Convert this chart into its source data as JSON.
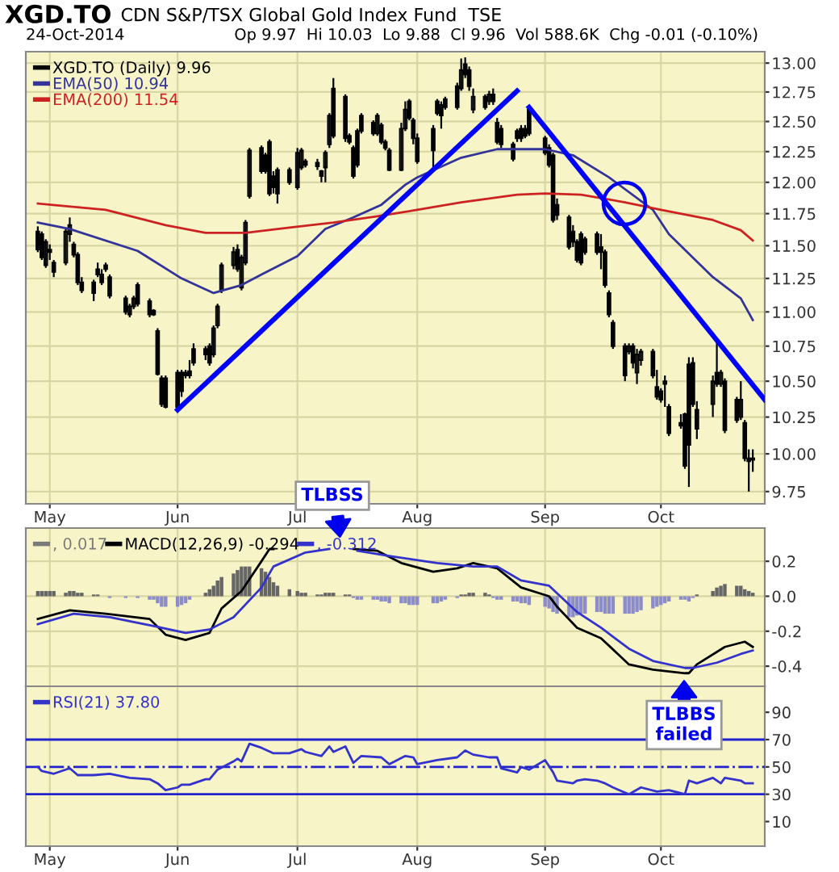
{
  "chart_data": [
    {
      "type": "candlestick",
      "title": "XGD.TO",
      "subtitle": "CDN S&P/TSX Global Gold Index Fund  TSE",
      "annotations": [
        "24-Oct-2014",
        "Op 9.97  Hi 10.03  Lo 9.88  Cl 9.96  Vol 588.6K  Chg -0.01 (-0.10%)"
      ],
      "x": [
        "2014-04-28",
        "2014-04-29",
        "2014-04-30",
        "2014-05-01",
        "2014-05-02",
        "2014-05-05",
        "2014-05-06",
        "2014-05-07",
        "2014-05-08",
        "2014-05-09",
        "2014-05-12",
        "2014-05-13",
        "2014-05-14",
        "2014-05-15",
        "2014-05-16",
        "2014-05-20",
        "2014-05-21",
        "2014-05-22",
        "2014-05-23",
        "2014-05-26",
        "2014-05-27",
        "2014-05-28",
        "2014-05-29",
        "2014-05-30",
        "2014-06-02",
        "2014-06-03",
        "2014-06-04",
        "2014-06-05",
        "2014-06-06",
        "2014-06-09",
        "2014-06-10",
        "2014-06-11",
        "2014-06-12",
        "2014-06-13",
        "2014-06-16",
        "2014-06-17",
        "2014-06-18",
        "2014-06-19",
        "2014-06-20",
        "2014-06-23",
        "2014-06-24",
        "2014-06-25",
        "2014-06-26",
        "2014-06-27",
        "2014-06-30",
        "2014-07-02",
        "2014-07-03",
        "2014-07-04",
        "2014-07-07",
        "2014-07-08",
        "2014-07-09",
        "2014-07-10",
        "2014-07-11",
        "2014-07-14",
        "2014-07-15",
        "2014-07-16",
        "2014-07-17",
        "2014-07-18",
        "2014-07-21",
        "2014-07-22",
        "2014-07-23",
        "2014-07-24",
        "2014-07-25",
        "2014-07-28",
        "2014-07-29",
        "2014-07-30",
        "2014-07-31",
        "2014-08-01",
        "2014-08-05",
        "2014-08-06",
        "2014-08-07",
        "2014-08-08",
        "2014-08-11",
        "2014-08-12",
        "2014-08-13",
        "2014-08-14",
        "2014-08-15",
        "2014-08-18",
        "2014-08-19",
        "2014-08-20",
        "2014-08-21",
        "2014-08-22",
        "2014-08-25",
        "2014-08-26",
        "2014-08-27",
        "2014-08-28",
        "2014-08-29",
        "2014-09-02",
        "2014-09-03",
        "2014-09-04",
        "2014-09-05",
        "2014-09-08",
        "2014-09-09",
        "2014-09-10",
        "2014-09-11",
        "2014-09-12",
        "2014-09-15",
        "2014-09-16",
        "2014-09-17",
        "2014-09-18",
        "2014-09-19",
        "2014-09-22",
        "2014-09-23",
        "2014-09-24",
        "2014-09-25",
        "2014-09-26",
        "2014-09-29",
        "2014-09-30",
        "2014-10-01",
        "2014-10-02",
        "2014-10-03",
        "2014-10-06",
        "2014-10-07",
        "2014-10-08",
        "2014-10-09",
        "2014-10-10",
        "2014-10-14",
        "2014-10-15",
        "2014-10-16",
        "2014-10-17",
        "2014-10-20",
        "2014-10-21",
        "2014-10-22",
        "2014-10-23",
        "2014-10-24"
      ],
      "series": [
        {
          "type": "candlestick",
          "name": "XGD.TO (Daily) 9.96",
          "color": "#000000",
          "ohlc": [
            [
              11.61,
              11.65,
              11.45,
              11.47
            ],
            [
              11.59,
              11.61,
              11.39,
              11.41
            ],
            [
              11.35,
              11.55,
              11.33,
              11.53
            ],
            [
              11.47,
              11.51,
              11.39,
              11.45
            ],
            [
              11.37,
              11.39,
              11.26,
              11.3
            ],
            [
              11.37,
              11.63,
              11.35,
              11.61
            ],
            [
              11.59,
              11.72,
              11.53,
              11.66
            ],
            [
              11.51,
              11.53,
              11.41,
              11.43
            ],
            [
              11.43,
              11.45,
              11.2,
              11.22
            ],
            [
              11.22,
              11.26,
              11.14,
              11.16
            ],
            [
              11.22,
              11.24,
              11.08,
              11.14
            ],
            [
              11.32,
              11.37,
              11.26,
              11.28
            ],
            [
              11.28,
              11.32,
              11.2,
              11.22
            ],
            [
              11.35,
              11.37,
              11.3,
              11.32
            ],
            [
              11.26,
              11.28,
              11.1,
              11.12
            ],
            [
              11.1,
              11.12,
              10.98,
              11.0
            ],
            [
              10.98,
              11.06,
              10.96,
              11.04
            ],
            [
              11.04,
              11.12,
              11.02,
              11.1
            ],
            [
              11.2,
              11.22,
              11.04,
              11.06
            ],
            [
              11.08,
              11.1,
              10.96,
              10.98
            ],
            [
              11.01,
              11.02,
              10.97,
              10.98
            ],
            [
              10.86,
              10.88,
              10.54,
              10.55
            ],
            [
              10.52,
              10.54,
              10.32,
              10.34
            ],
            [
              10.52,
              10.54,
              10.31,
              10.32
            ],
            [
              10.32,
              10.58,
              10.3,
              10.56
            ],
            [
              10.43,
              10.58,
              10.39,
              10.56
            ],
            [
              10.54,
              10.58,
              10.52,
              10.56
            ],
            [
              10.54,
              10.65,
              10.52,
              10.57
            ],
            [
              10.63,
              10.77,
              10.61,
              10.73
            ],
            [
              10.73,
              10.75,
              10.65,
              10.69
            ],
            [
              10.75,
              10.77,
              10.61,
              10.63
            ],
            [
              10.69,
              10.9,
              10.67,
              10.88
            ],
            [
              10.9,
              11.06,
              10.88,
              11.04
            ],
            [
              11.16,
              11.37,
              11.14,
              11.35
            ],
            [
              11.35,
              11.49,
              11.32,
              11.45
            ],
            [
              11.47,
              11.51,
              11.3,
              11.32
            ],
            [
              11.18,
              11.43,
              11.16,
              11.41
            ],
            [
              11.37,
              11.7,
              11.35,
              11.68
            ],
            [
              11.89,
              12.28,
              11.87,
              12.26
            ],
            [
              12.28,
              12.3,
              12.07,
              12.09
            ],
            [
              12.09,
              12.24,
              12.07,
              12.22
            ],
            [
              12.33,
              12.35,
              11.89,
              11.91
            ],
            [
              12.05,
              12.09,
              11.91,
              11.96
            ],
            [
              11.91,
              12.12,
              11.83,
              12.1
            ],
            [
              12.1,
              12.12,
              11.98,
              12.0
            ],
            [
              11.96,
              12.28,
              11.94,
              12.24
            ],
            [
              12.12,
              12.28,
              12.1,
              12.26
            ],
            [
              12.17,
              12.19,
              12.12,
              12.14
            ],
            [
              12.16,
              12.19,
              12.1,
              12.13
            ],
            [
              12.09,
              12.1,
              12.0,
              12.05
            ],
            [
              12.12,
              12.26,
              12.0,
              12.24
            ],
            [
              12.31,
              12.57,
              12.28,
              12.55
            ],
            [
              12.78,
              12.87,
              12.36,
              12.38
            ],
            [
              12.36,
              12.73,
              12.33,
              12.71
            ],
            [
              12.38,
              12.4,
              12.31,
              12.33
            ],
            [
              12.28,
              12.3,
              12.03,
              12.05
            ],
            [
              12.14,
              12.44,
              12.12,
              12.42
            ],
            [
              12.42,
              12.57,
              12.4,
              12.55
            ],
            [
              12.49,
              12.51,
              12.38,
              12.4
            ],
            [
              12.4,
              12.57,
              12.38,
              12.55
            ],
            [
              12.47,
              12.49,
              12.31,
              12.33
            ],
            [
              12.33,
              12.35,
              12.26,
              12.28
            ],
            [
              12.26,
              12.28,
              12.09,
              12.1
            ],
            [
              12.1,
              12.49,
              12.09,
              12.44
            ],
            [
              12.44,
              12.67,
              12.42,
              12.6
            ],
            [
              12.67,
              12.69,
              12.51,
              12.53
            ],
            [
              12.51,
              12.53,
              12.31,
              12.36
            ],
            [
              12.36,
              12.4,
              12.15,
              12.17
            ],
            [
              12.26,
              12.47,
              12.12,
              12.44
            ],
            [
              12.57,
              12.69,
              12.55,
              12.67
            ],
            [
              12.64,
              12.67,
              12.44,
              12.55
            ],
            [
              12.62,
              12.71,
              12.6,
              12.69
            ],
            [
              12.8,
              12.83,
              12.6,
              12.62
            ],
            [
              12.78,
              13.04,
              12.76,
              12.94
            ],
            [
              12.99,
              13.05,
              12.87,
              12.9
            ],
            [
              12.94,
              12.97,
              12.76,
              12.8
            ],
            [
              12.6,
              12.78,
              12.57,
              12.71
            ],
            [
              12.71,
              12.73,
              12.6,
              12.62
            ],
            [
              12.67,
              12.76,
              12.64,
              12.73
            ],
            [
              12.73,
              12.78,
              12.64,
              12.67
            ],
            [
              12.49,
              12.53,
              12.31,
              12.33
            ],
            [
              12.44,
              12.47,
              12.28,
              12.31
            ],
            [
              12.31,
              12.33,
              12.17,
              12.19
            ],
            [
              12.36,
              12.44,
              12.33,
              12.42
            ],
            [
              12.36,
              12.47,
              12.33,
              12.44
            ],
            [
              12.44,
              12.47,
              12.36,
              12.38
            ],
            [
              12.4,
              12.62,
              12.38,
              12.6
            ],
            [
              12.36,
              12.38,
              12.22,
              12.24
            ],
            [
              12.28,
              12.31,
              12.12,
              12.14
            ],
            [
              12.22,
              12.24,
              11.68,
              11.7
            ],
            [
              11.82,
              11.87,
              11.7,
              11.74
            ],
            [
              11.72,
              11.74,
              11.47,
              11.49
            ],
            [
              11.61,
              11.66,
              11.49,
              11.53
            ],
            [
              11.53,
              11.55,
              11.37,
              11.39
            ],
            [
              11.59,
              11.61,
              11.35,
              11.37
            ],
            [
              11.45,
              11.57,
              11.43,
              11.55
            ],
            [
              11.59,
              11.61,
              11.43,
              11.45
            ],
            [
              11.45,
              11.59,
              11.32,
              11.49
            ],
            [
              11.45,
              11.47,
              11.18,
              11.2
            ],
            [
              11.14,
              11.16,
              10.96,
              10.98
            ],
            [
              10.92,
              10.94,
              10.73,
              10.75
            ],
            [
              10.75,
              10.77,
              10.5,
              10.54
            ],
            [
              10.71,
              10.77,
              10.69,
              10.75
            ],
            [
              10.75,
              10.77,
              10.59,
              10.63
            ],
            [
              10.56,
              10.73,
              10.48,
              10.69
            ],
            [
              10.65,
              10.73,
              10.61,
              10.71
            ],
            [
              10.71,
              10.73,
              10.52,
              10.54
            ],
            [
              10.46,
              10.58,
              10.37,
              10.39
            ],
            [
              10.43,
              10.45,
              10.35,
              10.37
            ],
            [
              10.48,
              10.54,
              10.32,
              10.5
            ],
            [
              10.32,
              10.34,
              10.12,
              10.14
            ],
            [
              10.21,
              10.27,
              10.17,
              10.19
            ],
            [
              10.27,
              10.28,
              9.9,
              9.92
            ],
            [
              10.06,
              10.67,
              9.78,
              10.62
            ],
            [
              10.63,
              10.67,
              10.32,
              10.34
            ],
            [
              10.17,
              10.36,
              10.1,
              10.3
            ],
            [
              10.34,
              10.54,
              10.25,
              10.5
            ],
            [
              10.56,
              10.79,
              10.46,
              10.48
            ],
            [
              10.48,
              10.58,
              10.46,
              10.56
            ],
            [
              10.5,
              10.52,
              10.14,
              10.16
            ],
            [
              10.37,
              10.39,
              10.21,
              10.23
            ],
            [
              10.25,
              10.5,
              10.23,
              10.37
            ],
            [
              10.21,
              10.23,
              9.95,
              9.97
            ],
            [
              9.95,
              10.03,
              9.75,
              9.97
            ],
            [
              9.97,
              10.03,
              9.88,
              9.96
            ]
          ]
        },
        {
          "type": "line",
          "name": "EMA(50) 10.94",
          "color": "#333399",
          "x": [
            "2014-04-28",
            "2014-05-06",
            "2014-05-23",
            "2014-06-03",
            "2014-06-11",
            "2014-06-18",
            "2014-06-23",
            "2014-07-02",
            "2014-07-09",
            "2014-07-16",
            "2014-07-23",
            "2014-07-29",
            "2014-08-01",
            "2014-08-12",
            "2014-08-21",
            "2014-09-02",
            "2014-09-09",
            "2014-09-18",
            "2014-09-29",
            "2014-10-03",
            "2014-10-14",
            "2014-10-21",
            "2014-10-24"
          ],
          "values": [
            11.68,
            11.63,
            11.46,
            11.25,
            11.14,
            11.2,
            11.28,
            11.42,
            11.63,
            11.72,
            11.82,
            11.98,
            12.04,
            12.2,
            12.27,
            12.27,
            12.22,
            12.04,
            11.78,
            11.59,
            11.26,
            11.1,
            10.94
          ]
        },
        {
          "type": "line",
          "name": "EMA(200) 11.54",
          "color": "#cc2222",
          "x": [
            "2014-04-28",
            "2014-05-15",
            "2014-05-30",
            "2014-06-09",
            "2014-06-19",
            "2014-06-30",
            "2014-07-11",
            "2014-07-22",
            "2014-08-01",
            "2014-08-12",
            "2014-08-26",
            "2014-09-02",
            "2014-09-11",
            "2014-09-22",
            "2014-10-01",
            "2014-10-14",
            "2014-10-21",
            "2014-10-24"
          ],
          "values": [
            11.83,
            11.78,
            11.66,
            11.6,
            11.6,
            11.64,
            11.68,
            11.73,
            11.78,
            11.84,
            11.9,
            11.91,
            11.9,
            11.84,
            11.78,
            11.7,
            11.62,
            11.54
          ]
        },
        {
          "type": "line",
          "color": "#0000ff",
          "x": [
            "2014-06-02",
            "2014-08-26"
          ],
          "values": [
            10.3,
            12.76
          ]
        },
        {
          "type": "line",
          "color": "#0000ff",
          "x": [
            "2014-08-29",
            "2014-10-27"
          ],
          "values": [
            12.62,
            10.37
          ]
        }
      ],
      "log": "y",
      "ylim": [
        9.67,
        13.1
      ],
      "yticks": [
        9.75,
        {
          "value": 10,
          "label": "10.00"
        },
        10.25,
        {
          "value": 10.5,
          "label": "10.50"
        },
        10.75,
        {
          "value": 11,
          "label": "11.00"
        },
        11.25,
        {
          "value": 11.5,
          "label": "11.50"
        },
        11.75,
        {
          "value": 12,
          "label": "12.00"
        },
        12.25,
        {
          "value": 12.5,
          "label": "12.50"
        },
        12.75,
        {
          "value": 13,
          "label": "13.00"
        }
      ],
      "xlim": [
        "2014-04-25",
        "2014-10-27"
      ],
      "xticks": [
        {
          "value": "2014-05-01",
          "label": "May"
        },
        {
          "value": "2014-06-02",
          "label": "Jun"
        },
        {
          "value": "2014-07-02",
          "label": "Jul"
        },
        {
          "value": "2014-08-01",
          "label": "Aug"
        },
        {
          "value": "2014-09-02",
          "label": "Sep"
        },
        {
          "value": "2014-10-01",
          "label": "Oct"
        }
      ],
      "grid": true,
      "legend": "top left"
    },
    {
      "type": "line",
      "x": [
        "2014-04-28",
        "2014-04-29",
        "2014-04-30",
        "2014-05-01",
        "2014-05-02",
        "2014-05-05",
        "2014-05-06",
        "2014-05-07",
        "2014-05-08",
        "2014-05-09",
        "2014-05-12",
        "2014-05-13",
        "2014-05-14",
        "2014-05-15",
        "2014-05-16",
        "2014-05-20",
        "2014-05-21",
        "2014-05-22",
        "2014-05-23",
        "2014-05-26",
        "2014-05-27",
        "2014-05-28",
        "2014-05-29",
        "2014-05-30",
        "2014-06-02",
        "2014-06-03",
        "2014-06-04",
        "2014-06-05",
        "2014-06-06",
        "2014-06-09",
        "2014-06-10",
        "2014-06-11",
        "2014-06-12",
        "2014-06-13",
        "2014-06-16",
        "2014-06-17",
        "2014-06-18",
        "2014-06-19",
        "2014-06-20",
        "2014-06-23",
        "2014-06-24",
        "2014-06-25",
        "2014-06-26",
        "2014-06-27",
        "2014-06-30",
        "2014-07-02",
        "2014-07-03",
        "2014-07-04",
        "2014-07-07",
        "2014-07-08",
        "2014-07-09",
        "2014-07-10",
        "2014-07-11",
        "2014-07-14",
        "2014-07-15",
        "2014-07-16",
        "2014-07-17",
        "2014-07-18",
        "2014-07-21",
        "2014-07-22",
        "2014-07-23",
        "2014-07-24",
        "2014-07-25",
        "2014-07-28",
        "2014-07-29",
        "2014-07-30",
        "2014-07-31",
        "2014-08-01",
        "2014-08-05",
        "2014-08-06",
        "2014-08-07",
        "2014-08-08",
        "2014-08-11",
        "2014-08-12",
        "2014-08-13",
        "2014-08-14",
        "2014-08-15",
        "2014-08-18",
        "2014-08-19",
        "2014-08-20",
        "2014-08-21",
        "2014-08-22",
        "2014-08-25",
        "2014-08-26",
        "2014-08-27",
        "2014-08-28",
        "2014-08-29",
        "2014-09-02",
        "2014-09-03",
        "2014-09-04",
        "2014-09-05",
        "2014-09-08",
        "2014-09-09",
        "2014-09-10",
        "2014-09-11",
        "2014-09-12",
        "2014-09-15",
        "2014-09-16",
        "2014-09-17",
        "2014-09-18",
        "2014-09-19",
        "2014-09-22",
        "2014-09-23",
        "2014-09-24",
        "2014-09-25",
        "2014-09-26",
        "2014-09-29",
        "2014-09-30",
        "2014-10-01",
        "2014-10-02",
        "2014-10-03",
        "2014-10-06",
        "2014-10-07",
        "2014-10-08",
        "2014-10-09",
        "2014-10-10",
        "2014-10-14",
        "2014-10-15",
        "2014-10-16",
        "2014-10-17",
        "2014-10-20",
        "2014-10-21",
        "2014-10-22",
        "2014-10-23",
        "2014-10-24"
      ],
      "series": [
        {
          "type": "bar",
          "name": ", 0.017",
          "color": "#7a7a7a",
          "values": [
            0.03,
            0.03,
            0.03,
            0.03,
            0.03,
            0.02,
            0.03,
            0.03,
            0.02,
            0.02,
            0.01,
            0.01,
            0.0,
            0.0,
            -0.01,
            -0.01,
            0.0,
            0.0,
            -0.01,
            -0.02,
            -0.02,
            -0.04,
            -0.06,
            -0.06,
            -0.06,
            -0.05,
            -0.04,
            -0.02,
            0.0,
            0.02,
            0.04,
            0.06,
            0.09,
            0.11,
            0.13,
            0.15,
            0.17,
            0.17,
            0.17,
            0.16,
            0.14,
            0.11,
            0.08,
            0.06,
            0.04,
            0.03,
            0.02,
            0.02,
            0.01,
            0.01,
            0.02,
            0.02,
            0.02,
            0.01,
            0.01,
            -0.01,
            -0.02,
            -0.02,
            -0.02,
            -0.02,
            -0.03,
            -0.03,
            -0.04,
            -0.04,
            -0.04,
            -0.05,
            -0.05,
            -0.05,
            -0.04,
            -0.04,
            -0.03,
            -0.02,
            -0.01,
            0.01,
            0.01,
            0.02,
            0.02,
            0.02,
            0.01,
            -0.01,
            -0.02,
            -0.02,
            -0.03,
            -0.03,
            -0.04,
            -0.04,
            -0.05,
            -0.06,
            -0.07,
            -0.09,
            -0.1,
            -0.12,
            -0.12,
            -0.11,
            -0.1,
            -0.1,
            -0.09,
            -0.09,
            -0.1,
            -0.1,
            -0.1,
            -0.1,
            -0.1,
            -0.1,
            -0.09,
            -0.08,
            -0.07,
            -0.06,
            -0.05,
            -0.04,
            -0.03,
            -0.02,
            -0.02,
            -0.03,
            -0.01,
            0.01,
            0.03,
            0.05,
            0.06,
            0.07,
            0.06,
            0.06,
            0.04,
            0.03,
            0.02
          ],
          "colors": [
            "#666666",
            "#666666",
            "#666666",
            "#666666",
            "#666666",
            "#666666",
            "#666666",
            "#666666",
            "#666666",
            "#666666",
            "#666666",
            "#666666",
            "#666666",
            "#666666",
            "#8c8cc8",
            "#8c8cc8",
            "#666666",
            "#666666",
            "#8c8cc8",
            "#8c8cc8",
            "#8c8cc8",
            "#8c8cc8",
            "#8c8cc8",
            "#8c8cc8",
            "#8c8cc8",
            "#8c8cc8",
            "#8c8cc8",
            "#8c8cc8",
            "#666666",
            "#666666",
            "#666666",
            "#666666",
            "#666666",
            "#666666",
            "#666666",
            "#666666",
            "#666666",
            "#666666",
            "#666666",
            "#666666",
            "#666666",
            "#666666",
            "#666666",
            "#666666",
            "#666666",
            "#666666",
            "#666666",
            "#666666",
            "#666666",
            "#666666",
            "#666666",
            "#666666",
            "#666666",
            "#666666",
            "#666666",
            "#8c8cc8",
            "#8c8cc8",
            "#8c8cc8",
            "#8c8cc8",
            "#8c8cc8",
            "#8c8cc8",
            "#8c8cc8",
            "#8c8cc8",
            "#8c8cc8",
            "#8c8cc8",
            "#8c8cc8",
            "#8c8cc8",
            "#8c8cc8",
            "#8c8cc8",
            "#8c8cc8",
            "#8c8cc8",
            "#8c8cc8",
            "#8c8cc8",
            "#666666",
            "#666666",
            "#666666",
            "#666666",
            "#666666",
            "#666666",
            "#8c8cc8",
            "#8c8cc8",
            "#8c8cc8",
            "#8c8cc8",
            "#8c8cc8",
            "#8c8cc8",
            "#8c8cc8",
            "#8c8cc8",
            "#8c8cc8",
            "#8c8cc8",
            "#8c8cc8",
            "#8c8cc8",
            "#8c8cc8",
            "#8c8cc8",
            "#8c8cc8",
            "#8c8cc8",
            "#8c8cc8",
            "#8c8cc8",
            "#8c8cc8",
            "#8c8cc8",
            "#8c8cc8",
            "#8c8cc8",
            "#8c8cc8",
            "#8c8cc8",
            "#8c8cc8",
            "#8c8cc8",
            "#8c8cc8",
            "#8c8cc8",
            "#8c8cc8",
            "#8c8cc8",
            "#8c8cc8",
            "#8c8cc8",
            "#8c8cc8",
            "#8c8cc8",
            "#8c8cc8",
            "#8c8cc8",
            "#666666",
            "#666666",
            "#666666",
            "#666666",
            "#666666",
            "#666666",
            "#666666",
            "#666666",
            "#666666",
            "#666666"
          ]
        },
        {
          "type": "line",
          "name": "MACD(12,26,9) -0.294",
          "color": "#000000",
          "x": [
            "2014-04-28",
            "2014-05-06",
            "2014-05-15",
            "2014-05-26",
            "2014-05-30",
            "2014-06-04",
            "2014-06-10",
            "2014-06-13",
            "2014-06-18",
            "2014-06-23",
            "2014-06-25",
            "2014-06-26",
            "2014-06-27",
            "2014-07-16",
            "2014-07-22",
            "2014-07-28",
            "2014-08-05",
            "2014-08-11",
            "2014-08-15",
            "2014-08-21",
            "2014-08-27",
            "2014-09-03",
            "2014-09-05",
            "2014-09-10",
            "2014-09-16",
            "2014-09-23",
            "2014-09-29",
            "2014-10-07",
            "2014-10-08",
            "2014-10-10",
            "2014-10-17",
            "2014-10-22",
            "2014-10-24"
          ],
          "values": [
            -0.13,
            -0.08,
            -0.1,
            -0.13,
            -0.22,
            -0.25,
            -0.21,
            -0.07,
            0.03,
            0.2,
            0.27,
            0.27,
            null,
            0.27,
            0.26,
            0.19,
            0.14,
            0.16,
            0.19,
            0.16,
            0.05,
            0.0,
            -0.06,
            -0.18,
            -0.24,
            -0.39,
            -0.42,
            -0.44,
            -0.44,
            -0.39,
            -0.29,
            -0.26,
            -0.29
          ]
        },
        {
          "type": "line",
          "name": ", -0.312",
          "color": "#3333cc",
          "x": [
            "2014-04-28",
            "2014-05-07",
            "2014-05-16",
            "2014-05-27",
            "2014-06-04",
            "2014-06-10",
            "2014-06-16",
            "2014-06-23",
            "2014-06-26",
            "2014-07-04",
            "2014-07-10",
            "2014-07-11",
            "2014-07-17",
            "2014-07-25",
            "2014-08-06",
            "2014-08-15",
            "2014-08-21",
            "2014-08-27",
            "2014-09-03",
            "2014-09-10",
            "2014-09-16",
            "2014-09-23",
            "2014-09-29",
            "2014-10-07",
            "2014-10-09",
            "2014-10-15",
            "2014-10-21",
            "2014-10-24"
          ],
          "values": [
            -0.16,
            -0.1,
            -0.12,
            -0.17,
            -0.21,
            -0.19,
            -0.12,
            0.05,
            0.17,
            0.25,
            0.27,
            null,
            0.26,
            0.23,
            0.19,
            0.17,
            0.17,
            0.09,
            0.06,
            -0.09,
            -0.18,
            -0.3,
            -0.37,
            -0.41,
            -0.41,
            -0.38,
            -0.33,
            -0.31
          ]
        }
      ],
      "ylim": [
        -0.515,
        0.39
      ],
      "yticks": [
        0.2,
        {
          "value": 0,
          "label": "0.0"
        },
        -0.2,
        -0.4
      ],
      "xlim": [
        "2014-04-25",
        "2014-10-27"
      ],
      "xticks": [
        {
          "value": "2014-05-01",
          "label": null
        },
        {
          "value": "2014-06-02",
          "label": null
        },
        {
          "value": "2014-07-02",
          "label": null
        },
        {
          "value": "2014-08-01",
          "label": null
        },
        {
          "value": "2014-09-02",
          "label": null
        },
        {
          "value": "2014-10-01",
          "label": null
        }
      ],
      "tick_labels": "y",
      "grid": true,
      "legend": "top left",
      "annotations": [
        "TLBSS",
        "TLBBS\nfailed"
      ]
    },
    {
      "type": "line",
      "series": [
        {
          "name": "RSI(21) 37.80",
          "color": "#3333cc",
          "x": [
            "2014-04-28",
            "2014-04-29",
            "2014-05-02",
            "2014-05-06",
            "2014-05-08",
            "2014-05-12",
            "2014-05-16",
            "2014-05-21",
            "2014-05-26",
            "2014-05-28",
            "2014-05-30",
            "2014-06-02",
            "2014-06-03",
            "2014-06-05",
            "2014-06-09",
            "2014-06-10",
            "2014-06-12",
            "2014-06-16",
            "2014-06-17",
            "2014-06-18",
            "2014-06-20",
            "2014-06-23",
            "2014-06-26",
            "2014-06-30",
            "2014-07-03",
            "2014-07-04",
            "2014-07-08",
            "2014-07-10",
            "2014-07-11",
            "2014-07-14",
            "2014-07-16",
            "2014-07-18",
            "2014-07-23",
            "2014-07-25",
            "2014-07-29",
            "2014-07-31",
            "2014-08-01",
            "2014-08-06",
            "2014-08-11",
            "2014-08-13",
            "2014-08-15",
            "2014-08-19",
            "2014-08-21",
            "2014-08-22",
            "2014-08-26",
            "2014-08-27",
            "2014-08-29",
            "2014-09-02",
            "2014-09-04",
            "2014-09-05",
            "2014-09-09",
            "2014-09-10",
            "2014-09-12",
            "2014-09-15",
            "2014-09-17",
            "2014-09-19",
            "2014-09-23",
            "2014-09-26",
            "2014-09-30",
            "2014-10-03",
            "2014-10-07",
            "2014-10-08",
            "2014-10-10",
            "2014-10-14",
            "2014-10-16",
            "2014-10-17",
            "2014-10-21",
            "2014-10-22",
            "2014-10-24"
          ],
          "values": [
            50,
            47,
            45,
            49,
            44,
            44,
            45,
            42,
            41,
            38,
            33,
            35,
            37,
            37,
            41,
            41,
            48,
            54,
            56,
            54,
            67,
            64,
            60,
            60,
            63,
            61,
            58,
            65,
            61,
            65,
            53,
            58,
            57,
            52,
            58,
            57,
            52,
            55,
            57,
            62,
            59,
            57,
            57,
            49,
            46,
            50,
            48,
            55,
            46,
            40,
            38,
            40,
            41,
            40,
            38,
            35,
            30,
            35,
            32,
            33,
            30,
            40,
            38,
            42,
            38,
            42,
            40,
            38,
            38
          ]
        }
      ],
      "ylim": [
        -8,
        109
      ],
      "yticks": [
        90,
        70,
        50,
        30,
        10
      ],
      "xlim": [
        "2014-04-25",
        "2014-10-27"
      ],
      "xticks": [
        {
          "value": "2014-05-01",
          "label": "May"
        },
        {
          "value": "2014-06-02",
          "label": "Jun"
        },
        {
          "value": "2014-07-02",
          "label": "Jul"
        },
        {
          "value": "2014-08-01",
          "label": "Aug"
        },
        {
          "value": "2014-09-02",
          "label": "Sep"
        },
        {
          "value": "2014-10-01",
          "label": "Oct"
        }
      ],
      "ref_lines": [
        {
          "axis": "y",
          "value": 70,
          "color": "#2222cc",
          "line_style": "solid"
        },
        {
          "axis": "y",
          "value": 50,
          "color": "#2222cc",
          "line_style": "dashed"
        },
        {
          "axis": "y",
          "value": 30,
          "color": "#2222cc",
          "line_style": "solid"
        }
      ],
      "grid": "x",
      "legend": "top left"
    }
  ]
}
